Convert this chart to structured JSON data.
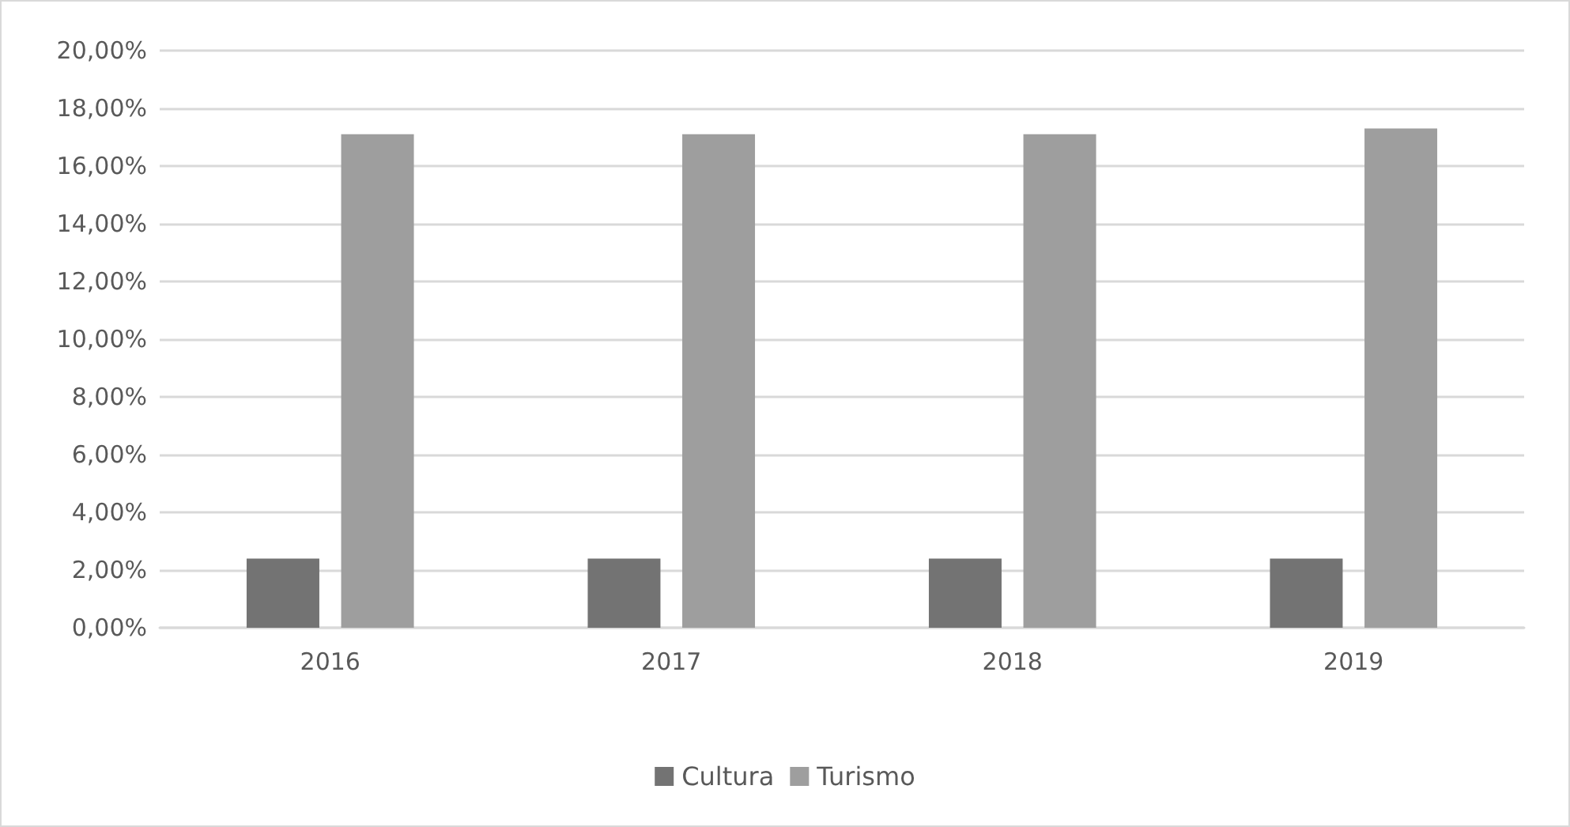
{
  "chart_data": {
    "type": "bar",
    "categories": [
      "2016",
      "2017",
      "2018",
      "2019"
    ],
    "series": [
      {
        "name": "Cultura",
        "color": "#737373",
        "values": [
          2.4,
          2.4,
          2.4,
          2.4
        ]
      },
      {
        "name": "Turismo",
        "color": "#9e9e9e",
        "values": [
          17.1,
          17.1,
          17.1,
          17.3
        ]
      }
    ],
    "ylim": [
      0,
      20
    ],
    "yticks": [
      {
        "value": 0,
        "label": "0,00%"
      },
      {
        "value": 2,
        "label": "2,00%"
      },
      {
        "value": 4,
        "label": "4,00%"
      },
      {
        "value": 6,
        "label": "6,00%"
      },
      {
        "value": 8,
        "label": "8,00%"
      },
      {
        "value": 10,
        "label": "10,00%"
      },
      {
        "value": 12,
        "label": "12,00%"
      },
      {
        "value": 14,
        "label": "14,00%"
      },
      {
        "value": 16,
        "label": "16,00%"
      },
      {
        "value": 18,
        "label": "18,00%"
      },
      {
        "value": 20,
        "label": "20,00%"
      }
    ],
    "grid": "y",
    "legend": "bottom"
  }
}
